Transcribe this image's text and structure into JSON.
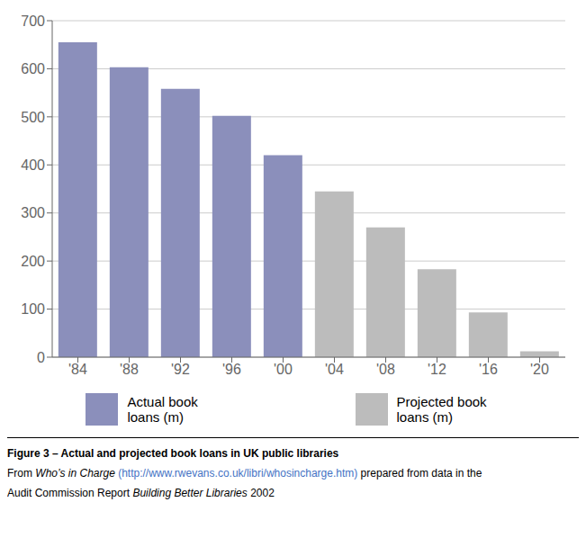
{
  "chart_data": {
    "type": "bar",
    "categories": [
      "'84",
      "'88",
      "'92",
      "'96",
      "'00",
      "'04",
      "'08",
      "'12",
      "'16",
      "'20"
    ],
    "series": [
      {
        "name": "Actual book\nloans (m)",
        "color": "#8B8FBB",
        "values": [
          655,
          603,
          558,
          502,
          420,
          null,
          null,
          null,
          null,
          null
        ]
      },
      {
        "name": "Projected book\nloans (m)",
        "color": "#BCBCBC",
        "values": [
          null,
          null,
          null,
          null,
          null,
          345,
          270,
          183,
          93,
          12
        ]
      }
    ],
    "ylim": [
      0,
      700
    ],
    "yticks": [
      0,
      100,
      200,
      300,
      400,
      500,
      600,
      700
    ],
    "grid": true,
    "legend": "bottom",
    "annotations": [
      [
        "Figure 3 – Actual and projected book loans in UK public libraries"
      ],
      [
        "From ",
        "Who’s in Charge",
        " (http://www.rwevans.co.uk/libri/whosincharge.htm)",
        " prepared from data in the"
      ],
      [
        "Audit Commission Report ",
        "Building Better Libraries",
        " 2002"
      ]
    ]
  }
}
